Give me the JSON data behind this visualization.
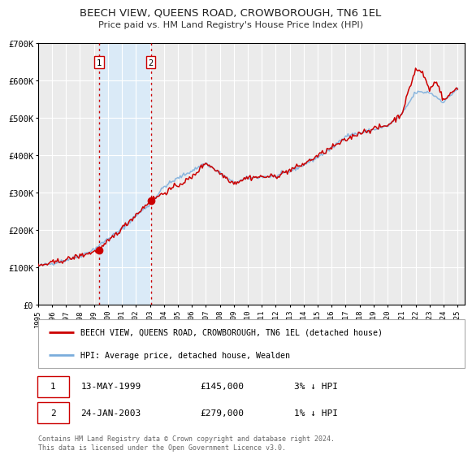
{
  "title": "BEECH VIEW, QUEENS ROAD, CROWBOROUGH, TN6 1EL",
  "subtitle": "Price paid vs. HM Land Registry's House Price Index (HPI)",
  "legend_label_red": "BEECH VIEW, QUEENS ROAD, CROWBOROUGH, TN6 1EL (detached house)",
  "legend_label_blue": "HPI: Average price, detached house, Wealden",
  "sale1_date": "13-MAY-1999",
  "sale1_price": 145000,
  "sale1_hpi": "3% ↓ HPI",
  "sale2_date": "24-JAN-2003",
  "sale2_price": 279000,
  "sale2_hpi": "1% ↓ HPI",
  "footer": "Contains HM Land Registry data © Crown copyright and database right 2024.\nThis data is licensed under the Open Government Licence v3.0.",
  "xmin": 1995.0,
  "xmax": 2025.5,
  "ymin": 0,
  "ymax": 700000,
  "sale1_x": 1999.37,
  "sale2_x": 2003.07,
  "background_color": "#ffffff",
  "plot_bg_color": "#ebebeb",
  "grid_color": "#ffffff",
  "red_line_color": "#cc0000",
  "blue_line_color": "#7aaddc",
  "shade_color": "#daeaf7",
  "vline_color": "#cc0000",
  "sale_dot_color": "#cc0000",
  "hpi_anchors_x": [
    1995,
    1996,
    1997,
    1998,
    1999,
    2000,
    2001,
    2002,
    2003,
    2004,
    2005,
    2006,
    2007,
    2008,
    2009,
    2010,
    2011,
    2012,
    2013,
    2014,
    2015,
    2016,
    2017,
    2018,
    2019,
    2020,
    2021,
    2022,
    2023,
    2024,
    2025
  ],
  "hpi_anchors_y": [
    103000,
    110000,
    119000,
    130000,
    148000,
    176000,
    202000,
    238000,
    268000,
    315000,
    338000,
    358000,
    378000,
    352000,
    325000,
    338000,
    342000,
    343000,
    356000,
    374000,
    394000,
    418000,
    452000,
    458000,
    468000,
    478000,
    508000,
    568000,
    568000,
    542000,
    578000
  ],
  "red_anchors_x": [
    1995,
    1997,
    1999.37,
    2003.07,
    2006,
    2007,
    2008,
    2009,
    2010,
    2012,
    2014,
    2016,
    2018,
    2019,
    2020,
    2021,
    2022,
    2022.5,
    2023,
    2023.5,
    2024,
    2025
  ],
  "red_anchors_y": [
    103000,
    120000,
    145000,
    279000,
    340000,
    380000,
    352000,
    325000,
    340000,
    343000,
    376000,
    420000,
    460000,
    470000,
    480000,
    510000,
    630000,
    620000,
    575000,
    600000,
    545000,
    582000
  ],
  "noise_seed": 42,
  "hpi_noise_scale": 2500,
  "red_noise_scale": 3500
}
